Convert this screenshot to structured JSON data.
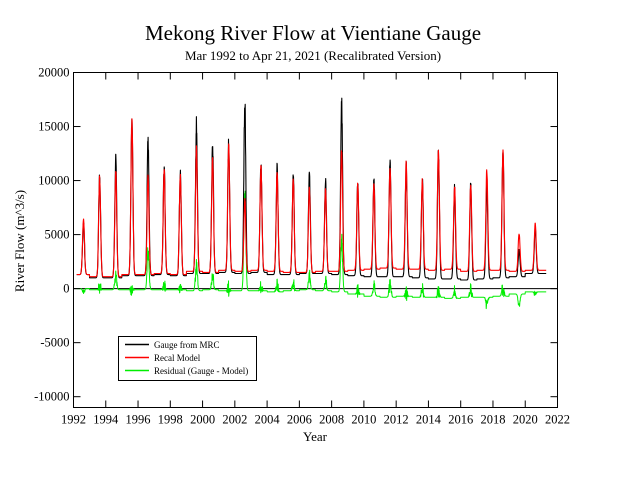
{
  "chart_data": {
    "type": "line",
    "title": "Mekong River Flow at Vientiane Gauge",
    "subtitle": "Mar 1992 to Apr 21, 2021 (Recalibrated Version)",
    "xlabel": "Year",
    "ylabel": "River Flow (m^3/s)",
    "xlim": [
      1992,
      2022
    ],
    "ylim": [
      -11000,
      20000
    ],
    "xticks": [
      1992,
      1994,
      1996,
      1998,
      2000,
      2002,
      2004,
      2006,
      2008,
      2010,
      2012,
      2014,
      2016,
      2018,
      2020,
      2022
    ],
    "yticks": [
      -10000,
      -5000,
      0,
      5000,
      10000,
      15000,
      20000
    ],
    "zero_line": true,
    "grid": false,
    "legend_position": "bottom-left",
    "series_colors": {
      "gauge": "#000000",
      "model": "#ff0000",
      "residual": "#00ee00"
    },
    "annual": {
      "years": [
        1992,
        1993,
        1994,
        1995,
        1996,
        1997,
        1998,
        1999,
        2000,
        2001,
        2002,
        2003,
        2004,
        2005,
        2006,
        2007,
        2008,
        2009,
        2010,
        2011,
        2012,
        2013,
        2014,
        2015,
        2016,
        2017,
        2018,
        2019,
        2020
      ],
      "gauge_peak": [
        6000,
        10400,
        12200,
        15300,
        13700,
        11300,
        10500,
        15300,
        13100,
        13400,
        17500,
        11500,
        11200,
        10600,
        10400,
        10200,
        17000,
        9500,
        10000,
        11800,
        11300,
        10000,
        12600,
        9300,
        9500,
        9500,
        12900,
        3500,
        5600
      ],
      "model_peak": [
        6400,
        10200,
        10900,
        15700,
        10300,
        11000,
        10400,
        13200,
        12000,
        13400,
        8200,
        11300,
        10900,
        10100,
        9300,
        9300,
        12800,
        9700,
        9700,
        11200,
        11700,
        10100,
        12800,
        9600,
        9600,
        11000,
        12700,
        5100,
        6100
      ],
      "gauge_base": [
        1300,
        1000,
        1000,
        1200,
        1200,
        1300,
        1200,
        1400,
        1400,
        1500,
        1400,
        1500,
        1300,
        1300,
        1400,
        1400,
        1300,
        1200,
        1100,
        1100,
        1100,
        1000,
        900,
        900,
        800,
        900,
        1000,
        1100,
        1400
      ],
      "model_base": [
        1300,
        1100,
        1100,
        1300,
        1300,
        1400,
        1300,
        1600,
        1500,
        1700,
        1600,
        1700,
        1600,
        1500,
        1500,
        1600,
        1600,
        1700,
        1800,
        1900,
        1800,
        1800,
        1700,
        1800,
        1600,
        1700,
        1700,
        1600,
        1700
      ]
    },
    "series": [
      {
        "key": "gauge",
        "name": "Gauge from MRC"
      },
      {
        "key": "model",
        "name": "Recal Model"
      },
      {
        "key": "residual",
        "name": "Residual (Gauge - Model)"
      }
    ]
  }
}
